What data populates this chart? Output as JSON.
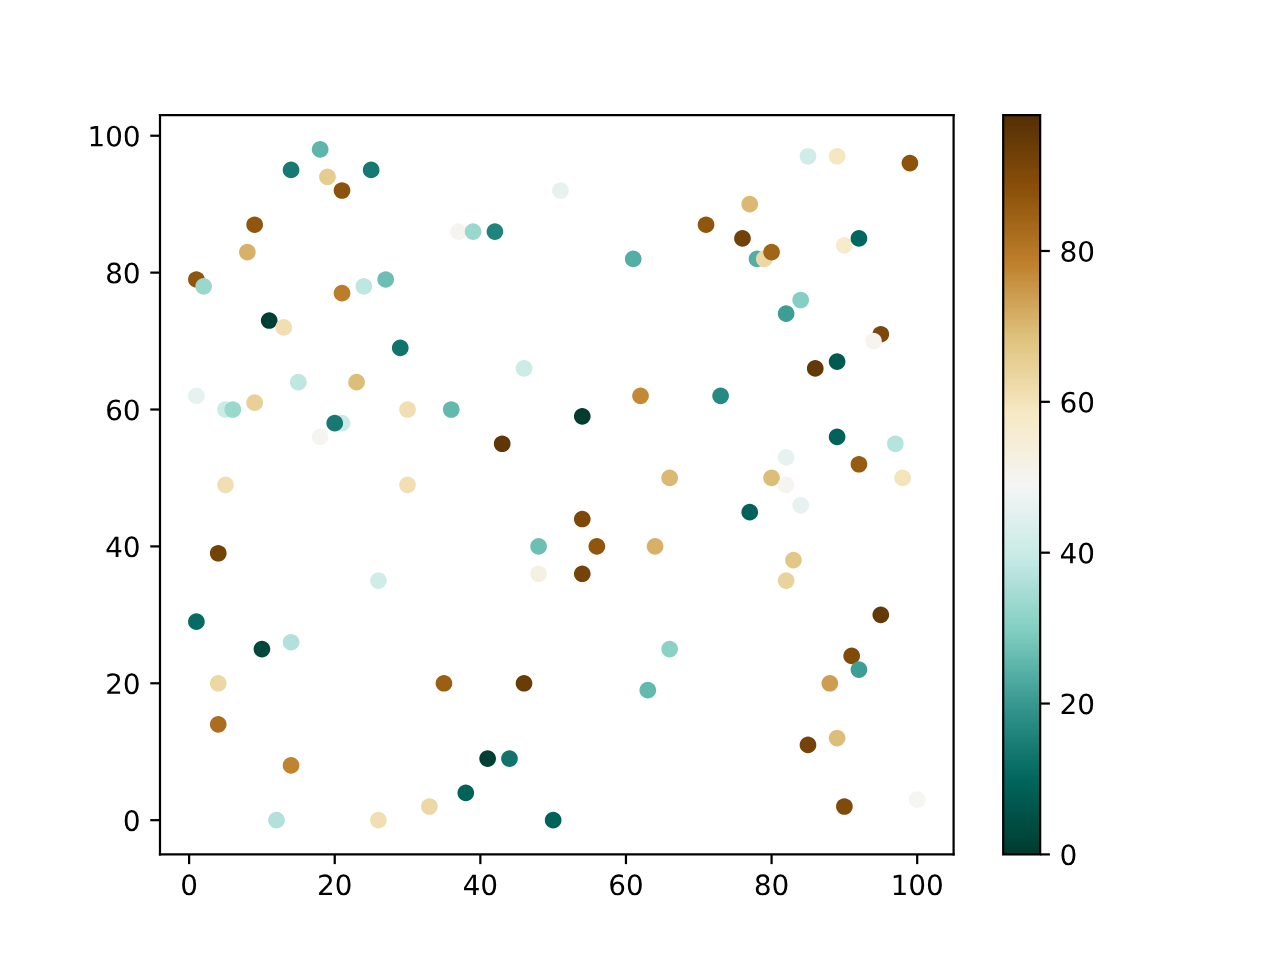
{
  "chart_data": {
    "type": "scatter",
    "x": [
      18,
      14,
      25,
      19,
      21,
      51,
      9,
      37,
      39,
      42,
      8,
      1,
      2,
      21,
      24,
      27,
      11,
      13,
      29,
      46,
      1,
      5,
      6,
      9,
      15,
      23,
      30,
      36,
      21,
      20,
      18,
      43,
      5,
      30,
      85,
      89,
      99,
      77,
      71,
      76,
      61,
      78,
      79,
      80,
      90,
      92,
      84,
      82,
      95,
      94,
      86,
      89,
      62,
      73,
      54,
      89,
      97,
      92,
      82,
      66,
      80,
      82,
      98,
      4,
      48,
      48,
      26,
      1,
      10,
      14,
      4,
      35,
      46,
      4,
      14,
      41,
      44,
      38,
      33,
      12,
      26,
      50,
      77,
      84,
      54,
      56,
      64,
      54,
      83,
      82,
      95,
      66,
      63,
      91,
      92,
      88,
      85,
      89,
      90,
      100
    ],
    "values": [
      98,
      95,
      95,
      94,
      92,
      92,
      87,
      86,
      86,
      86,
      83,
      79,
      78,
      77,
      78,
      79,
      73,
      72,
      69,
      66,
      62,
      60,
      60,
      61,
      64,
      64,
      60,
      60,
      58,
      58,
      56,
      55,
      49,
      49,
      97,
      97,
      96,
      90,
      87,
      85,
      82,
      82,
      82,
      83,
      84,
      85,
      76,
      74,
      71,
      70,
      66,
      67,
      62,
      62,
      59,
      56,
      55,
      52,
      53,
      50,
      50,
      49,
      50,
      39,
      40,
      36,
      35,
      29,
      25,
      26,
      20,
      20,
      20,
      14,
      8,
      9,
      9,
      4,
      2,
      0,
      0,
      0,
      45,
      46,
      44,
      40,
      40,
      36,
      38,
      35,
      30,
      25,
      19,
      24,
      22,
      20,
      11,
      12,
      2,
      3
    ],
    "cvalues": [
      25,
      14,
      14,
      66,
      88,
      46,
      87,
      50,
      33,
      16,
      71,
      87,
      33,
      79,
      38,
      27,
      1,
      61,
      13,
      40,
      46,
      40,
      33,
      65,
      38,
      69,
      61,
      26,
      40,
      14,
      50,
      96,
      61,
      61,
      41,
      59,
      88,
      70,
      87,
      93,
      24,
      24,
      63,
      84,
      57,
      10,
      30,
      21,
      91,
      50,
      95,
      7,
      77,
      17,
      0,
      9,
      37,
      86,
      46,
      70,
      69,
      50,
      60,
      92,
      27,
      53,
      41,
      11,
      3,
      36,
      63,
      85,
      94,
      82,
      78,
      1,
      13,
      9,
      63,
      36,
      61,
      9,
      9,
      46,
      91,
      87,
      71,
      92,
      67,
      64,
      95,
      31,
      26,
      90,
      21,
      74,
      92,
      69,
      90,
      49
    ],
    "marker": "circle",
    "grid": false,
    "xlim": [
      -4,
      105
    ],
    "ylim": [
      -5,
      103
    ],
    "xticks": [
      0,
      20,
      40,
      60,
      80,
      100
    ],
    "yticks": [
      0,
      20,
      40,
      60,
      80,
      100
    ],
    "clim": [
      0,
      98
    ],
    "cticks": [
      0,
      20,
      40,
      60,
      80
    ]
  }
}
